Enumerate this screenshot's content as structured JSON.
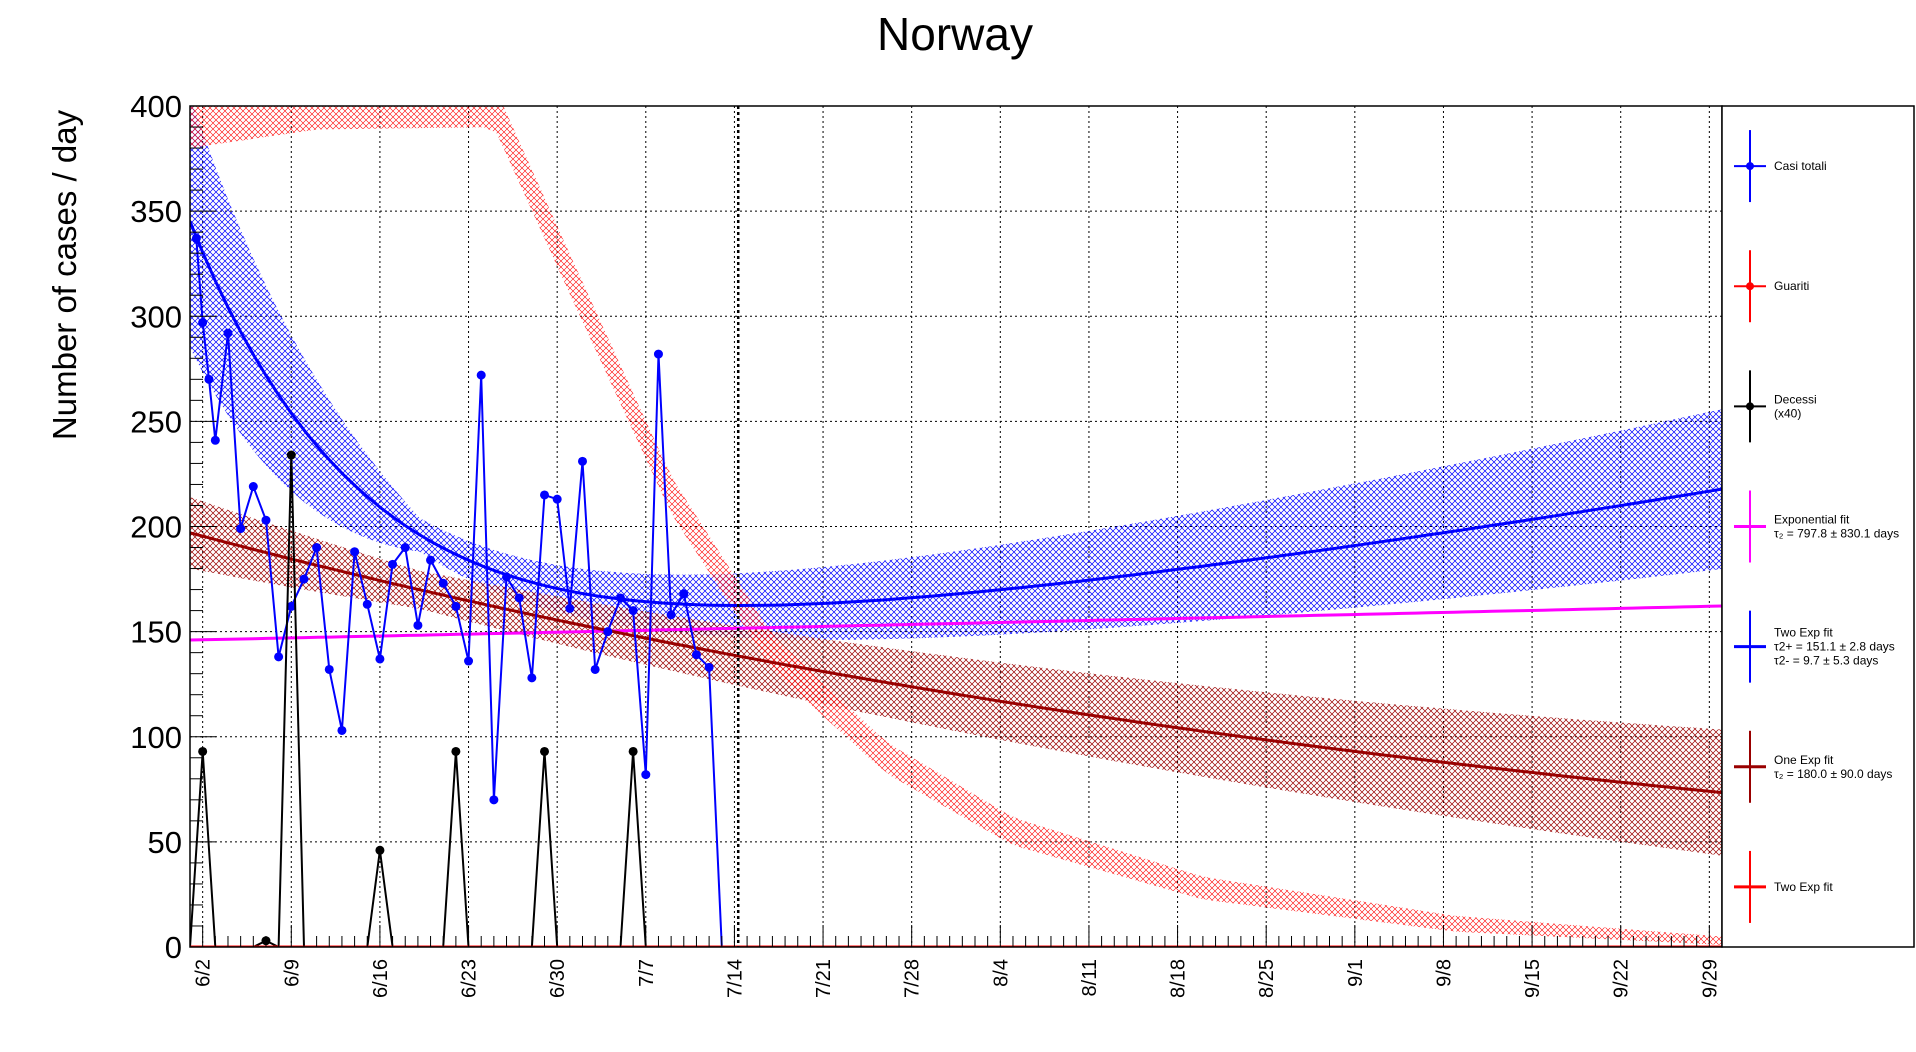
{
  "chart_data": {
    "type": "line",
    "title": "Norway",
    "ylabel": "Number of cases / day",
    "xlabel": "",
    "ylim": [
      0,
      400
    ],
    "y_ticks": [
      0,
      50,
      100,
      150,
      200,
      250,
      300,
      350,
      400
    ],
    "x_start_date": "6/1",
    "x_end_day": 121,
    "x_tick_labels": [
      "6/2",
      "6/9",
      "6/16",
      "6/23",
      "6/30",
      "7/7",
      "7/14",
      "7/21",
      "7/28",
      "8/4",
      "8/11",
      "8/18",
      "8/25",
      "9/1",
      "9/8",
      "9/15",
      "9/22",
      "9/29"
    ],
    "x_tick_days": [
      1,
      8,
      15,
      22,
      29,
      36,
      43,
      50,
      57,
      64,
      71,
      78,
      85,
      92,
      99,
      106,
      113,
      120
    ],
    "marker_line_day": 43.3,
    "grid": true,
    "legend_position": "right",
    "legend": [
      {
        "name": "Casi totali",
        "color": "#0000ff",
        "style": "marker"
      },
      {
        "name": "Guariti",
        "color": "#ff0000",
        "style": "marker"
      },
      {
        "name": "Decessi",
        "sub": "(x40)",
        "color": "#000000",
        "style": "marker"
      },
      {
        "name": "Exponential fit",
        "sub": "τ₂ = 797.8  ± 830.1 days",
        "color": "#ff00ff",
        "style": "line"
      },
      {
        "name": "Two Exp fit",
        "sub": "τ2+ = 151.1 ± 2.8 days",
        "sub2": "τ2- = 9.7 ± 5.3 days",
        "color": "#0000ff",
        "style": "line"
      },
      {
        "name": "One Exp fit",
        "sub": "τ₂ = 180.0  ± 90.0 days",
        "color": "#990000",
        "style": "line"
      },
      {
        "name": "Two Exp fit",
        "color": "#ff0000",
        "style": "line"
      }
    ],
    "series": [
      {
        "name": "Casi totali",
        "color": "#0000ff",
        "x": [
          0.5,
          1,
          1.5,
          2,
          3,
          4,
          5,
          6,
          7,
          8,
          9,
          10,
          11,
          12,
          13,
          14,
          15,
          16,
          17,
          18,
          19,
          20,
          21,
          22,
          23,
          24,
          25,
          26,
          27,
          28,
          29,
          30,
          31,
          32,
          33,
          34,
          35,
          36,
          37,
          38,
          39,
          40,
          41,
          42,
          43,
          43.3
        ],
        "y": [
          337,
          297,
          270,
          241,
          292,
          199,
          219,
          203,
          138,
          162,
          175,
          190,
          132,
          103,
          188,
          163,
          137,
          182,
          190,
          153,
          184,
          173,
          162,
          136,
          272,
          70,
          176,
          166,
          128,
          215,
          213,
          161,
          231,
          132,
          150,
          166,
          160,
          82,
          282,
          158,
          168,
          139,
          133,
          0,
          0,
          0
        ]
      },
      {
        "name": "Decessi (x40)",
        "color": "#000000",
        "x": [
          0,
          1,
          2,
          5,
          6,
          7,
          8,
          9,
          14,
          15,
          16,
          20,
          21,
          22,
          23,
          27,
          28,
          29,
          30,
          34,
          35,
          36,
          37,
          121
        ],
        "y": [
          0,
          93,
          0,
          0,
          3,
          0,
          234,
          0,
          0,
          46,
          0,
          0,
          93,
          0,
          0,
          0,
          93,
          0,
          0,
          0,
          93,
          0,
          0,
          0
        ]
      },
      {
        "name": "Guariti",
        "color": "#ff0000",
        "x": [
          0,
          121
        ],
        "y": [
          0,
          0
        ]
      }
    ],
    "fits": [
      {
        "name": "Exponential fit",
        "color": "#ff00ff",
        "model": "one_exp",
        "A": 146,
        "tau2": 797.8,
        "x_range": [
          0,
          121
        ]
      },
      {
        "name": "Two Exp fit",
        "color": "#0000ff",
        "model": "two_exp",
        "A": 125,
        "tau_plus": 151.1,
        "B": 220,
        "tau_minus": 9.7,
        "x_range": [
          0,
          121
        ],
        "band": {
          "color": "#0000ff",
          "half_width_start": 60,
          "half_width_mid": 8,
          "half_width_end": 38
        }
      },
      {
        "name": "One Exp fit",
        "color": "#990000",
        "model": "one_exp",
        "A": 197,
        "tau2": 180.0,
        "x_range": [
          0,
          121
        ],
        "band": {
          "color": "#990000",
          "half_width_start": 17,
          "half_width_mid": 9,
          "half_width_end": 30
        }
      },
      {
        "name": "Two Exp fit (red)",
        "color": "#ff0000",
        "model": "band_only",
        "x_range": [
          0,
          121
        ],
        "band": {
          "color": "#ff0000",
          "center_points": [
            [
              0,
              392
            ],
            [
              10,
              400
            ],
            [
              24,
              400
            ],
            [
              30,
              320
            ],
            [
              38,
              215
            ],
            [
              46,
              140
            ],
            [
              55,
              90
            ],
            [
              65,
              55
            ],
            [
              80,
              28
            ],
            [
              100,
              11
            ],
            [
              121,
              3
            ]
          ],
          "half_width_start": 12,
          "half_width_end": 2
        }
      }
    ]
  }
}
